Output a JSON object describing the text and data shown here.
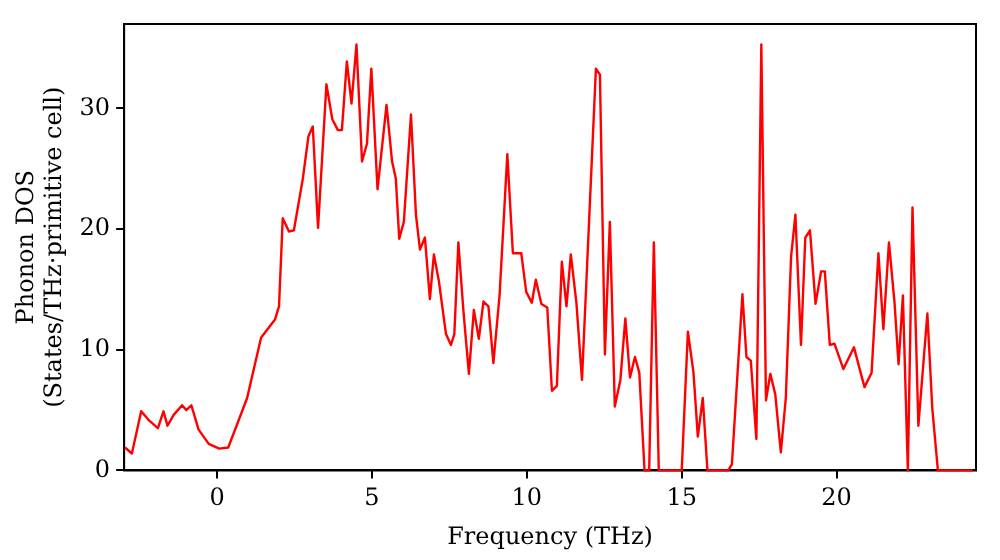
{
  "chart_data": {
    "type": "line",
    "xlabel": "Frequency (THz)",
    "ylabel": "Phonon DOS\n(States/THz·primitive cell)",
    "x": [
      -2.97,
      -2.75,
      -2.45,
      -2.18,
      -1.91,
      -1.73,
      -1.6,
      -1.4,
      -1.13,
      -0.99,
      -0.83,
      -0.6,
      -0.27,
      0.07,
      0.36,
      0.63,
      0.97,
      1.42,
      1.87,
      2.0,
      2.12,
      2.32,
      2.48,
      2.77,
      2.95,
      3.09,
      3.26,
      3.53,
      3.72,
      3.9,
      4.03,
      4.19,
      4.34,
      4.5,
      4.68,
      4.84,
      4.98,
      5.18,
      5.47,
      5.65,
      5.77,
      5.88,
      6.03,
      6.26,
      6.42,
      6.55,
      6.71,
      6.87,
      7.0,
      7.16,
      7.39,
      7.55,
      7.66,
      7.79,
      7.95,
      8.13,
      8.29,
      8.45,
      8.6,
      8.76,
      8.92,
      9.12,
      9.37,
      9.55,
      9.82,
      9.98,
      10.16,
      10.29,
      10.47,
      10.66,
      10.81,
      10.97,
      11.13,
      11.28,
      11.42,
      11.6,
      11.78,
      12.23,
      12.36,
      12.52,
      12.68,
      12.84,
      13.02,
      13.18,
      13.33,
      13.49,
      13.63,
      13.8,
      13.95,
      14.1,
      14.26,
      15.0,
      15.2,
      15.38,
      15.52,
      15.68,
      15.83,
      16.5,
      16.62,
      16.96,
      17.09,
      17.23,
      17.41,
      17.57,
      17.72,
      17.86,
      18.02,
      18.2,
      18.36,
      18.53,
      18.67,
      18.85,
      18.99,
      19.14,
      19.32,
      19.5,
      19.62,
      19.78,
      19.93,
      20.22,
      20.56,
      20.9,
      21.13,
      21.35,
      21.51,
      21.69,
      21.87,
      22.0,
      22.14,
      22.3,
      22.45,
      22.64,
      22.93,
      23.09,
      23.27,
      24.4
    ],
    "series": [
      {
        "color": "#ff0000",
        "values": [
          1.9,
          1.4,
          4.9,
          4.1,
          3.5,
          4.9,
          3.7,
          4.6,
          5.4,
          5.0,
          5.4,
          3.4,
          2.2,
          1.8,
          1.9,
          3.7,
          6.0,
          11.0,
          12.5,
          13.6,
          20.9,
          19.8,
          19.9,
          24.2,
          27.7,
          28.5,
          20.1,
          32.0,
          29.1,
          28.2,
          28.2,
          33.9,
          30.4,
          35.3,
          25.6,
          27.1,
          33.3,
          23.3,
          30.3,
          25.6,
          24.2,
          19.2,
          20.6,
          29.5,
          21.2,
          18.3,
          19.3,
          14.2,
          17.9,
          15.7,
          11.3,
          10.4,
          11.3,
          18.9,
          13.3,
          8.0,
          13.3,
          10.9,
          14.0,
          13.6,
          8.9,
          14.5,
          26.2,
          18.0,
          18.0,
          14.8,
          13.9,
          15.8,
          13.8,
          13.5,
          6.6,
          7.0,
          17.3,
          13.6,
          17.9,
          13.9,
          7.5,
          33.3,
          32.8,
          9.6,
          20.6,
          5.3,
          7.5,
          12.6,
          7.7,
          9.4,
          8.1,
          0,
          0,
          18.9,
          0,
          0,
          11.5,
          8.1,
          2.8,
          6.0,
          0,
          0,
          0.5,
          14.6,
          9.4,
          9.1,
          2.6,
          35.3,
          5.8,
          8.0,
          6.3,
          1.5,
          6.0,
          17.7,
          21.2,
          10.4,
          19.3,
          19.9,
          13.8,
          16.5,
          16.5,
          10.4,
          10.5,
          8.4,
          10.2,
          6.9,
          8.1,
          18.0,
          11.7,
          18.9,
          13.9,
          8.8,
          14.5,
          0,
          21.8,
          3.7,
          13.0,
          5.1,
          0,
          0
        ]
      }
    ],
    "xlim": [
      -3,
      24.5
    ],
    "ylim": [
      0,
      37
    ],
    "xticks": [
      0,
      5,
      10,
      15,
      20
    ],
    "yticks": [
      0,
      10,
      20,
      30
    ],
    "grid": false,
    "legend": false,
    "marker": "none",
    "line_style": "solid"
  }
}
